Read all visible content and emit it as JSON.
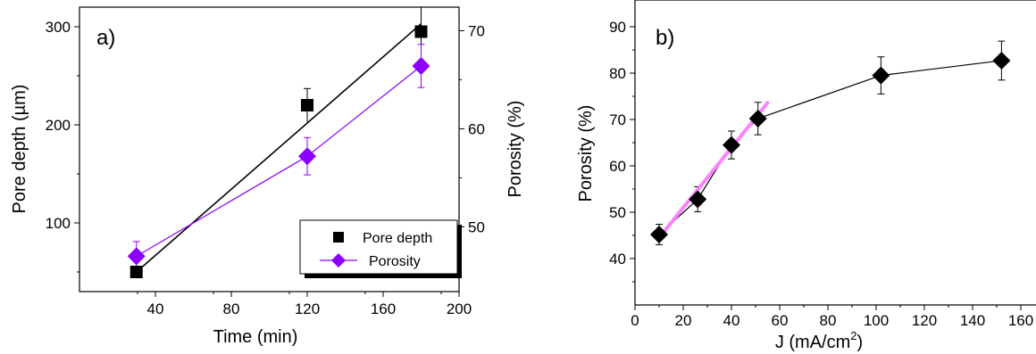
{
  "chart_data": [
    {
      "panel": "a)",
      "type": "line",
      "xlabel": "Time (min)",
      "ylabel_left": "Pore depth (µm)",
      "ylabel_right": "Porosity (%)",
      "xlim": [
        0,
        200
      ],
      "xticks": [
        40,
        80,
        120,
        160,
        200
      ],
      "ylim_left": [
        30,
        320
      ],
      "yticks_left": [
        100,
        200,
        300
      ],
      "ylim_right": [
        43.4,
        72.4
      ],
      "yticks_right": [
        50,
        60,
        70
      ],
      "grid": false,
      "legend_position": "bottom-right",
      "series": [
        {
          "name": "Pore depth",
          "axis": "left",
          "marker": "square",
          "color": "#000000",
          "x": [
            30,
            120,
            180
          ],
          "y": [
            50,
            220,
            295
          ],
          "yerr": [
            0,
            17,
            25
          ],
          "fit_line": {
            "x": [
              30,
              180
            ],
            "y": [
              50,
              303
            ]
          }
        },
        {
          "name": "Porosity",
          "axis": "right",
          "marker": "diamond",
          "color": "#8b00ff",
          "x": [
            30,
            120,
            180
          ],
          "y": [
            47.0,
            57.2,
            66.4
          ],
          "yerr": [
            1.5,
            1.9,
            2.2
          ]
        }
      ]
    },
    {
      "panel": "b)",
      "type": "line",
      "xlabel": "J (mA/cm",
      "xlabel_sup": "2",
      "xlabel_end": ")",
      "ylabel": "Porosity (%)",
      "xlim": [
        0,
        165
      ],
      "xticks": [
        0,
        20,
        40,
        60,
        80,
        100,
        120,
        140,
        160
      ],
      "ylim": [
        30,
        95
      ],
      "yticks": [
        40,
        50,
        60,
        70,
        80,
        90
      ],
      "grid": false,
      "series": [
        {
          "name": "Porosity",
          "marker": "diamond",
          "color": "#000000",
          "x": [
            10,
            26,
            40,
            51,
            102,
            152
          ],
          "y": [
            45.2,
            52.8,
            64.5,
            70.2,
            79.5,
            82.7
          ],
          "yerr": [
            2.2,
            2.7,
            3.0,
            3.5,
            4.0,
            4.2
          ]
        }
      ],
      "fit_line": {
        "color": "#ff80ff",
        "x": [
          10,
          55
        ],
        "y": [
          44.5,
          73.6
        ]
      }
    }
  ]
}
